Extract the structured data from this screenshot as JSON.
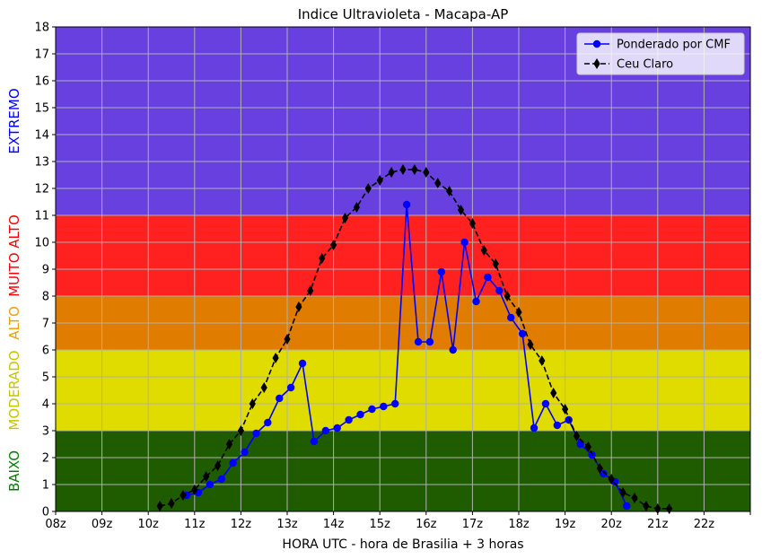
{
  "chart_data": {
    "type": "line",
    "title": "Indice Ultravioleta - Macapa-AP",
    "xlabel": "HORA UTC - hora de Brasilia + 3 horas",
    "ylabel": "",
    "xlim": [
      8,
      23
    ],
    "ylim": [
      0,
      18
    ],
    "grid": true,
    "legend_position": "top-right",
    "x_ticks": [
      {
        "value": 8,
        "label": "08z"
      },
      {
        "value": 9,
        "label": "09z"
      },
      {
        "value": 10,
        "label": "10z"
      },
      {
        "value": 11,
        "label": "11z"
      },
      {
        "value": 12,
        "label": "12z"
      },
      {
        "value": 13,
        "label": "13z"
      },
      {
        "value": 14,
        "label": "14z"
      },
      {
        "value": 15,
        "label": "15z"
      },
      {
        "value": 16,
        "label": "16z"
      },
      {
        "value": 17,
        "label": "17z"
      },
      {
        "value": 18,
        "label": "18z"
      },
      {
        "value": 19,
        "label": "19z"
      },
      {
        "value": 20,
        "label": "20z"
      },
      {
        "value": 21,
        "label": "21z"
      },
      {
        "value": 22,
        "label": "22z"
      },
      {
        "value": 23,
        "label": ""
      }
    ],
    "y_ticks": [
      0,
      1,
      2,
      3,
      4,
      5,
      6,
      7,
      8,
      9,
      10,
      11,
      12,
      13,
      14,
      15,
      16,
      17,
      18
    ],
    "bands": [
      {
        "name": "BAIXO",
        "from": 0,
        "to": 3,
        "color": "#1f5c00",
        "label_color": "#008000"
      },
      {
        "name": "MODERADO",
        "from": 3,
        "to": 6,
        "color": "#e0dc00",
        "label_color": "#c9c400"
      },
      {
        "name": "ALTO",
        "from": 6,
        "to": 8,
        "color": "#e07c00",
        "label_color": "#f0a000"
      },
      {
        "name": "MUITO ALTO",
        "from": 8,
        "to": 11,
        "color": "#ff2020",
        "label_color": "#ff0000"
      },
      {
        "name": "EXTREMO",
        "from": 11,
        "to": 18,
        "color": "#6840e0",
        "label_color": "#0000ff"
      }
    ],
    "series": [
      {
        "name": "Ponderado por CMF",
        "color": "#0000ff",
        "marker": "circle",
        "linestyle": "solid",
        "x": [
          10.83,
          11.08,
          11.33,
          11.58,
          11.83,
          12.08,
          12.33,
          12.58,
          12.83,
          13.08,
          13.33,
          13.58,
          13.83,
          14.08,
          14.33,
          14.58,
          14.83,
          15.08,
          15.33,
          15.58,
          15.83,
          16.08,
          16.33,
          16.58,
          16.83,
          17.08,
          17.33,
          17.58,
          17.83,
          18.08,
          18.33,
          18.58,
          18.83,
          19.08,
          19.33,
          19.58,
          19.83,
          20.08,
          20.33
        ],
        "values": [
          0.6,
          0.7,
          1.0,
          1.2,
          1.8,
          2.2,
          2.9,
          3.3,
          4.2,
          4.6,
          5.5,
          2.6,
          3.0,
          3.1,
          3.4,
          3.6,
          3.8,
          3.9,
          4.0,
          11.4,
          6.3,
          6.3,
          8.9,
          6.0,
          10.0,
          7.8,
          8.7,
          8.2,
          7.2,
          6.6,
          3.1,
          4.0,
          3.2,
          3.4,
          2.5,
          2.1,
          1.4,
          1.1,
          0.2
        ]
      },
      {
        "name": "Ceu Claro",
        "color": "#000000",
        "marker": "diamond",
        "linestyle": "dashed",
        "x": [
          10.25,
          10.5,
          10.75,
          11.0,
          11.25,
          11.5,
          11.75,
          12.0,
          12.25,
          12.5,
          12.75,
          13.0,
          13.25,
          13.5,
          13.75,
          14.0,
          14.25,
          14.5,
          14.75,
          15.0,
          15.25,
          15.5,
          15.75,
          16.0,
          16.25,
          16.5,
          16.75,
          17.0,
          17.25,
          17.5,
          17.75,
          18.0,
          18.25,
          18.5,
          18.75,
          19.0,
          19.25,
          19.5,
          19.75,
          20.0,
          20.25,
          20.5,
          20.75,
          21.0,
          21.25
        ],
        "values": [
          0.2,
          0.3,
          0.6,
          0.8,
          1.3,
          1.7,
          2.5,
          3.0,
          4.0,
          4.6,
          5.7,
          6.4,
          7.6,
          8.2,
          9.4,
          9.9,
          10.9,
          11.3,
          12.0,
          12.3,
          12.6,
          12.7,
          12.7,
          12.6,
          12.2,
          11.9,
          11.2,
          10.7,
          9.7,
          9.2,
          8.0,
          7.4,
          6.2,
          5.6,
          4.4,
          3.8,
          2.8,
          2.4,
          1.6,
          1.2,
          0.7,
          0.5,
          0.2,
          0.1,
          0.1
        ]
      }
    ]
  }
}
